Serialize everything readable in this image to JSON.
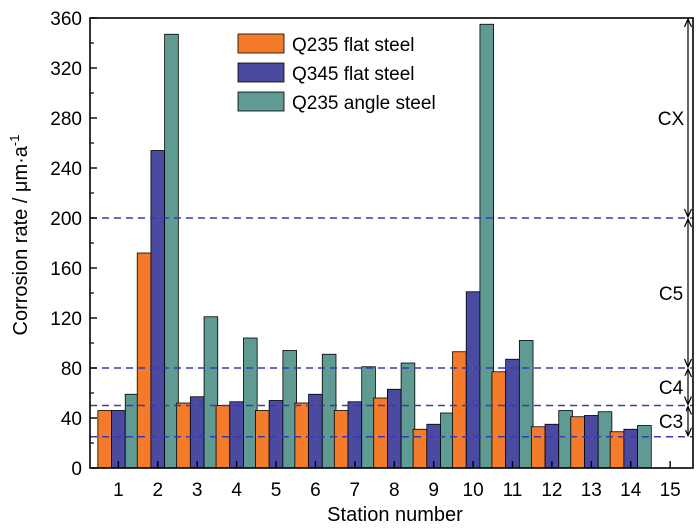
{
  "chart_data": {
    "type": "bar",
    "xlabel": "Station number",
    "ylabel": "Corrosion rate / μm·a",
    "ylabel_sup": "-1",
    "ylim": [
      0,
      360
    ],
    "yticks": [
      0,
      40,
      80,
      120,
      160,
      200,
      240,
      280,
      320,
      360
    ],
    "categories": [
      "1",
      "2",
      "3",
      "4",
      "5",
      "6",
      "7",
      "8",
      "9",
      "10",
      "11",
      "12",
      "13",
      "14",
      "15"
    ],
    "series": [
      {
        "name": "Q235 flat steel",
        "color": "#f47b2a",
        "values": [
          46,
          172,
          52,
          50,
          46,
          52,
          46,
          56,
          31,
          93,
          77,
          33,
          41,
          29,
          null
        ]
      },
      {
        "name": "Q345 flat steel",
        "color": "#4a4aa0",
        "values": [
          46,
          254,
          57,
          53,
          54,
          59,
          53,
          63,
          35,
          141,
          87,
          35,
          42,
          31,
          null
        ]
      },
      {
        "name": "Q235 angle steel",
        "color": "#5f9a93",
        "values": [
          59,
          347,
          121,
          104,
          94,
          91,
          81,
          84,
          44,
          355,
          102,
          46,
          45,
          34,
          null
        ]
      }
    ],
    "legend_position": "top-center",
    "grid": false,
    "reference_lines": [
      {
        "value": 25,
        "color": "#3a3aa8",
        "style": "dashed"
      },
      {
        "value": 50,
        "color": "#3a3aa8",
        "style": "dashed"
      },
      {
        "value": 80,
        "color": "#3a3aa8",
        "style": "dashed"
      },
      {
        "value": 200,
        "color": "#3a3aa8",
        "style": "dashed"
      }
    ],
    "class_bands": [
      {
        "label": "C3",
        "from": 25,
        "to": 50
      },
      {
        "label": "C4",
        "from": 50,
        "to": 80
      },
      {
        "label": "C5",
        "from": 80,
        "to": 200
      },
      {
        "label": "CX",
        "from": 200,
        "to": 360
      }
    ]
  }
}
